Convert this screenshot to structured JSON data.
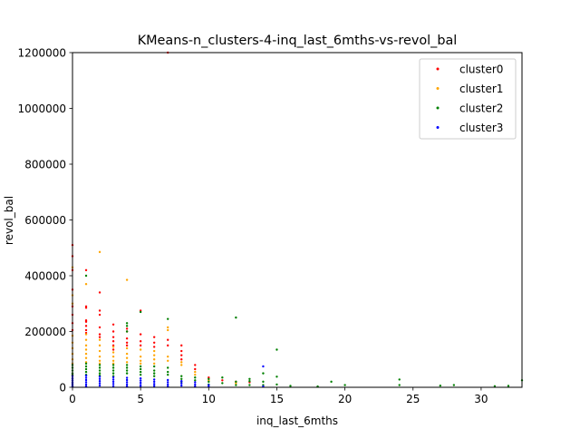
{
  "chart_data": {
    "type": "scatter",
    "title": "KMeans-n_clusters-4-inq_last_6mths-vs-revol_bal",
    "xlabel": "inq_last_6mths",
    "ylabel": "revol_bal",
    "xlim": [
      0,
      33
    ],
    "ylim": [
      0,
      1200000
    ],
    "x_ticks": [
      0,
      5,
      10,
      15,
      20,
      25,
      30
    ],
    "y_ticks": [
      0,
      200000,
      400000,
      600000,
      800000,
      1000000,
      1200000
    ],
    "x_tick_labels": [
      "0",
      "5",
      "10",
      "15",
      "20",
      "25",
      "30"
    ],
    "y_tick_labels": [
      "0",
      "200000",
      "400000",
      "600000",
      "800000",
      "1000000",
      "1200000"
    ],
    "legend_position": "upper right",
    "grid": false,
    "series": [
      {
        "name": "cluster0",
        "color": "#ff0000",
        "points": [
          [
            0,
            510000
          ],
          [
            0,
            470000
          ],
          [
            0,
            420000
          ],
          [
            0,
            350000
          ],
          [
            0,
            290000
          ],
          [
            0,
            260000
          ],
          [
            0,
            230000
          ],
          [
            0,
            205000
          ],
          [
            1,
            420000
          ],
          [
            1,
            290000
          ],
          [
            1,
            285000
          ],
          [
            1,
            240000
          ],
          [
            1,
            235000
          ],
          [
            1,
            220000
          ],
          [
            1,
            205000
          ],
          [
            1,
            195000
          ],
          [
            2,
            340000
          ],
          [
            2,
            275000
          ],
          [
            2,
            260000
          ],
          [
            2,
            215000
          ],
          [
            2,
            190000
          ],
          [
            2,
            180000
          ],
          [
            3,
            225000
          ],
          [
            3,
            200000
          ],
          [
            3,
            180000
          ],
          [
            3,
            165000
          ],
          [
            3,
            150000
          ],
          [
            3,
            135000
          ],
          [
            4,
            210000
          ],
          [
            4,
            200000
          ],
          [
            4,
            175000
          ],
          [
            4,
            160000
          ],
          [
            4,
            150000
          ],
          [
            5,
            275000
          ],
          [
            5,
            190000
          ],
          [
            5,
            165000
          ],
          [
            5,
            150000
          ],
          [
            6,
            180000
          ],
          [
            6,
            160000
          ],
          [
            6,
            145000
          ],
          [
            7,
            1200000
          ],
          [
            7,
            170000
          ],
          [
            7,
            150000
          ],
          [
            8,
            150000
          ],
          [
            8,
            130000
          ],
          [
            8,
            115000
          ],
          [
            8,
            100000
          ],
          [
            9,
            80000
          ],
          [
            9,
            65000
          ],
          [
            10,
            35000
          ],
          [
            11,
            25000
          ],
          [
            12,
            20000
          ],
          [
            13,
            18000
          ]
        ]
      },
      {
        "name": "cluster1",
        "color": "#ffa500",
        "points": [
          [
            0,
            430000
          ],
          [
            0,
            330000
          ],
          [
            0,
            300000
          ],
          [
            0,
            185000
          ],
          [
            0,
            160000
          ],
          [
            0,
            140000
          ],
          [
            0,
            120000
          ],
          [
            0,
            100000
          ],
          [
            0,
            85000
          ],
          [
            1,
            370000
          ],
          [
            1,
            190000
          ],
          [
            1,
            170000
          ],
          [
            1,
            150000
          ],
          [
            1,
            135000
          ],
          [
            1,
            120000
          ],
          [
            1,
            105000
          ],
          [
            1,
            90000
          ],
          [
            2,
            485000
          ],
          [
            2,
            170000
          ],
          [
            2,
            150000
          ],
          [
            2,
            130000
          ],
          [
            2,
            110000
          ],
          [
            2,
            95000
          ],
          [
            2,
            85000
          ],
          [
            3,
            145000
          ],
          [
            3,
            125000
          ],
          [
            3,
            110000
          ],
          [
            3,
            95000
          ],
          [
            3,
            85000
          ],
          [
            4,
            385000
          ],
          [
            4,
            140000
          ],
          [
            4,
            120000
          ],
          [
            4,
            105000
          ],
          [
            4,
            90000
          ],
          [
            5,
            135000
          ],
          [
            5,
            110000
          ],
          [
            5,
            95000
          ],
          [
            5,
            85000
          ],
          [
            6,
            130000
          ],
          [
            6,
            115000
          ],
          [
            6,
            100000
          ],
          [
            6,
            85000
          ],
          [
            7,
            215000
          ],
          [
            7,
            205000
          ],
          [
            7,
            110000
          ],
          [
            7,
            95000
          ],
          [
            8,
            90000
          ],
          [
            8,
            80000
          ],
          [
            9,
            55000
          ],
          [
            9,
            45000
          ],
          [
            10,
            25000
          ],
          [
            12,
            15000
          ]
        ]
      },
      {
        "name": "cluster2",
        "color": "#008000",
        "points": [
          [
            0,
            80000
          ],
          [
            0,
            70000
          ],
          [
            0,
            60000
          ],
          [
            0,
            50000
          ],
          [
            0,
            45000
          ],
          [
            1,
            400000
          ],
          [
            1,
            85000
          ],
          [
            1,
            75000
          ],
          [
            1,
            65000
          ],
          [
            1,
            55000
          ],
          [
            1,
            45000
          ],
          [
            2,
            80000
          ],
          [
            2,
            70000
          ],
          [
            2,
            60000
          ],
          [
            2,
            50000
          ],
          [
            2,
            42000
          ],
          [
            3,
            80000
          ],
          [
            3,
            70000
          ],
          [
            3,
            60000
          ],
          [
            3,
            50000
          ],
          [
            3,
            40000
          ],
          [
            4,
            230000
          ],
          [
            4,
            220000
          ],
          [
            4,
            200000
          ],
          [
            4,
            80000
          ],
          [
            4,
            70000
          ],
          [
            4,
            60000
          ],
          [
            4,
            50000
          ],
          [
            5,
            270000
          ],
          [
            5,
            75000
          ],
          [
            5,
            65000
          ],
          [
            5,
            55000
          ],
          [
            5,
            45000
          ],
          [
            6,
            75000
          ],
          [
            6,
            60000
          ],
          [
            6,
            50000
          ],
          [
            6,
            40000
          ],
          [
            7,
            245000
          ],
          [
            7,
            70000
          ],
          [
            7,
            55000
          ],
          [
            7,
            45000
          ],
          [
            8,
            40000
          ],
          [
            8,
            30000
          ],
          [
            8,
            20000
          ],
          [
            9,
            35000
          ],
          [
            9,
            25000
          ],
          [
            10,
            30000
          ],
          [
            10,
            20000
          ],
          [
            10,
            10000
          ],
          [
            11,
            35000
          ],
          [
            11,
            15000
          ],
          [
            12,
            250000
          ],
          [
            12,
            20000
          ],
          [
            12,
            8000
          ],
          [
            13,
            30000
          ],
          [
            13,
            22000
          ],
          [
            13,
            8000
          ],
          [
            14,
            50000
          ],
          [
            14,
            20000
          ],
          [
            14,
            8000
          ],
          [
            15,
            135000
          ],
          [
            15,
            38000
          ],
          [
            15,
            10000
          ],
          [
            16,
            5000
          ],
          [
            18,
            3000
          ],
          [
            19,
            20000
          ],
          [
            20,
            8000
          ],
          [
            24,
            28000
          ],
          [
            24,
            8000
          ],
          [
            27,
            6000
          ],
          [
            28,
            8000
          ],
          [
            31,
            4000
          ],
          [
            32,
            5000
          ],
          [
            33,
            25000
          ]
        ]
      },
      {
        "name": "cluster3",
        "color": "#0000ff",
        "points": [
          [
            0,
            40000
          ],
          [
            0,
            32000
          ],
          [
            0,
            25000
          ],
          [
            0,
            18000
          ],
          [
            0,
            12000
          ],
          [
            0,
            6000
          ],
          [
            0,
            2000
          ],
          [
            1,
            42000
          ],
          [
            1,
            34000
          ],
          [
            1,
            26000
          ],
          [
            1,
            18000
          ],
          [
            1,
            10000
          ],
          [
            1,
            3000
          ],
          [
            2,
            38000
          ],
          [
            2,
            30000
          ],
          [
            2,
            22000
          ],
          [
            2,
            14000
          ],
          [
            2,
            6000
          ],
          [
            3,
            36000
          ],
          [
            3,
            28000
          ],
          [
            3,
            20000
          ],
          [
            3,
            12000
          ],
          [
            3,
            4000
          ],
          [
            4,
            34000
          ],
          [
            4,
            26000
          ],
          [
            4,
            18000
          ],
          [
            4,
            10000
          ],
          [
            4,
            3000
          ],
          [
            5,
            32000
          ],
          [
            5,
            24000
          ],
          [
            5,
            16000
          ],
          [
            5,
            8000
          ],
          [
            5,
            2000
          ],
          [
            6,
            28000
          ],
          [
            6,
            20000
          ],
          [
            6,
            12000
          ],
          [
            6,
            5000
          ],
          [
            7,
            26000
          ],
          [
            7,
            18000
          ],
          [
            7,
            10000
          ],
          [
            7,
            3000
          ],
          [
            8,
            22000
          ],
          [
            8,
            14000
          ],
          [
            8,
            6000
          ],
          [
            9,
            18000
          ],
          [
            9,
            10000
          ],
          [
            9,
            3000
          ],
          [
            10,
            8000
          ],
          [
            10,
            2000
          ],
          [
            14,
            75000
          ],
          [
            14,
            3000
          ]
        ]
      }
    ]
  }
}
